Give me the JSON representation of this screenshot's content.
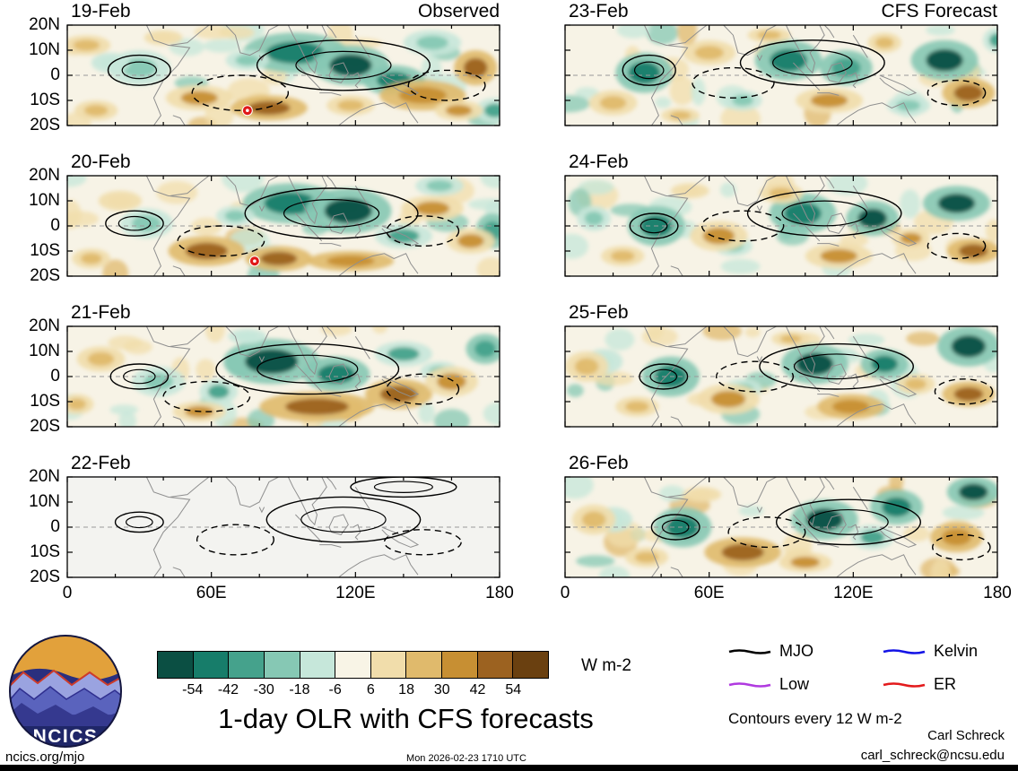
{
  "meta": {
    "title": "1-day OLR with CFS forecasts",
    "contour_note": "Contours every 12 W m-2",
    "credit_name": "Carl Schreck",
    "credit_email": "carl_schreck@ncsu.edu",
    "site": "ncics.org/mjo",
    "timestamp": "Mon 2026-02-23 1710 UTC",
    "logo_text": "NCICS"
  },
  "columns": [
    {
      "header": "Observed"
    },
    {
      "header": "CFS Forecast"
    }
  ],
  "axes": {
    "lon_range": [
      0,
      180
    ],
    "lat_range": [
      -20,
      20
    ],
    "x_values": [
      0,
      60,
      120,
      180
    ],
    "x_tick_labels": [
      "0",
      "60E",
      "120E",
      "180"
    ],
    "y_values": [
      20,
      10,
      0,
      -10,
      -20
    ],
    "y_tick_labels": [
      "20N",
      "10N",
      "0",
      "10S",
      "20S"
    ]
  },
  "colorbar": {
    "ticks": [
      -54,
      -42,
      -30,
      -18,
      -6,
      6,
      18,
      30,
      42,
      54
    ],
    "colors": [
      "#0b4f43",
      "#177d6a",
      "#45a28c",
      "#86c8b4",
      "#c6e7da",
      "#f8f4e6",
      "#f1ddab",
      "#e0ba6c",
      "#c78f33",
      "#9c6220",
      "#6a4010"
    ],
    "unit_label": "W m-2"
  },
  "legend": [
    {
      "label": "MJO",
      "color": "#000000"
    },
    {
      "label": "Kelvin",
      "color": "#1414e6"
    },
    {
      "label": "Low",
      "color": "#b03ae0"
    },
    {
      "label": "ER",
      "color": "#e31a1c"
    }
  ],
  "chart_data": {
    "type": "heatmap",
    "field": "OLR anomaly",
    "units": "W m-2",
    "blob_format": [
      "lon_deg_east",
      "lat_deg_north",
      "radius_lon_deg",
      "radius_lat_deg",
      "anomaly_wm2"
    ],
    "contour_format": [
      "lon_deg_east",
      "lat_deg_north",
      "radius_lon_deg",
      "radius_lat_deg",
      "dashed_flag"
    ],
    "panels": [
      {
        "date": "19-Feb",
        "column": "Observed",
        "bg": "#f7f3e6",
        "speckle": true,
        "blobs": [
          [
            30,
            3,
            13,
            7,
            -28
          ],
          [
            18,
            5,
            8,
            4,
            -18
          ],
          [
            95,
            9,
            22,
            8,
            -50
          ],
          [
            118,
            4,
            16,
            8,
            -58
          ],
          [
            136,
            -2,
            13,
            6,
            -45
          ],
          [
            152,
            13,
            12,
            5,
            -30
          ],
          [
            75,
            6,
            9,
            4,
            -22
          ],
          [
            178,
            -14,
            8,
            5,
            -35
          ],
          [
            55,
            -9,
            14,
            5,
            30
          ],
          [
            84,
            -13,
            16,
            5,
            45
          ],
          [
            118,
            -12,
            10,
            4,
            25
          ],
          [
            148,
            -8,
            18,
            6,
            40
          ],
          [
            170,
            3,
            9,
            7,
            48
          ],
          [
            163,
            -14,
            10,
            4,
            35
          ],
          [
            12,
            -14,
            9,
            4,
            26
          ],
          [
            8,
            12,
            10,
            4,
            18
          ],
          [
            40,
            15,
            8,
            3,
            15
          ]
        ],
        "contours": [
          [
            115,
            4,
            36,
            10,
            0
          ],
          [
            30,
            2,
            13,
            6,
            0
          ],
          [
            72,
            -7,
            20,
            7,
            1
          ],
          [
            158,
            -4,
            16,
            6,
            1
          ]
        ],
        "markers": [
          [
            75,
            -14
          ]
        ]
      },
      {
        "date": "20-Feb",
        "column": "Observed",
        "bg": "#f7f3e6",
        "speckle": true,
        "blobs": [
          [
            33,
            1,
            11,
            6,
            -26
          ],
          [
            93,
            9,
            20,
            8,
            -52
          ],
          [
            117,
            6,
            18,
            9,
            -60
          ],
          [
            140,
            -4,
            12,
            5,
            -38
          ],
          [
            70,
            4,
            8,
            4,
            -20
          ],
          [
            177,
            -2,
            7,
            7,
            -42
          ],
          [
            155,
            16,
            10,
            4,
            -25
          ],
          [
            58,
            -10,
            16,
            6,
            42
          ],
          [
            88,
            -13,
            14,
            5,
            50
          ],
          [
            118,
            -14,
            18,
            4,
            40
          ],
          [
            152,
            7,
            13,
            5,
            32
          ],
          [
            168,
            -6,
            10,
            5,
            36
          ],
          [
            10,
            -13,
            8,
            4,
            24
          ],
          [
            22,
            10,
            9,
            4,
            16
          ]
        ],
        "contours": [
          [
            110,
            5,
            36,
            10,
            0
          ],
          [
            28,
            1,
            12,
            5,
            0
          ],
          [
            64,
            -6,
            18,
            6,
            1
          ],
          [
            148,
            -2,
            15,
            6,
            1
          ]
        ],
        "markers": [
          [
            78,
            -14
          ]
        ]
      },
      {
        "date": "21-Feb",
        "column": "Observed",
        "bg": "#f7f3e6",
        "speckle": true,
        "blobs": [
          [
            85,
            6,
            20,
            9,
            -55
          ],
          [
            112,
            1,
            14,
            7,
            -45
          ],
          [
            38,
            -2,
            11,
            6,
            -30
          ],
          [
            140,
            9,
            12,
            5,
            -32
          ],
          [
            63,
            -6,
            8,
            5,
            -35
          ],
          [
            174,
            11,
            8,
            6,
            -42
          ],
          [
            155,
            2,
            8,
            4,
            -25
          ],
          [
            104,
            -12,
            24,
            6,
            52
          ],
          [
            138,
            -7,
            14,
            6,
            45
          ],
          [
            55,
            -14,
            11,
            4,
            30
          ],
          [
            160,
            -2,
            11,
            6,
            38
          ],
          [
            14,
            7,
            10,
            5,
            18
          ],
          [
            4,
            -11,
            7,
            4,
            24
          ],
          [
            75,
            16,
            8,
            3,
            -18
          ]
        ],
        "contours": [
          [
            100,
            3,
            38,
            10,
            0
          ],
          [
            30,
            0,
            12,
            5,
            0
          ],
          [
            58,
            -8,
            18,
            6,
            1
          ],
          [
            148,
            -5,
            15,
            6,
            1
          ]
        ],
        "markers": []
      },
      {
        "date": "22-Feb",
        "column": "Observed",
        "bg": "#f3f3f0",
        "speckle": false,
        "blobs": [],
        "contours": [
          [
            115,
            3,
            32,
            9,
            0
          ],
          [
            30,
            2,
            10,
            4,
            0
          ],
          [
            70,
            -5,
            16,
            6,
            1
          ],
          [
            148,
            -6,
            16,
            5,
            1
          ],
          [
            140,
            16,
            22,
            4,
            0
          ]
        ],
        "markers": []
      },
      {
        "date": "23-Feb",
        "column": "CFS Forecast",
        "bg": "#f7f3e6",
        "speckle": true,
        "blobs": [
          [
            33,
            1,
            12,
            8,
            -45
          ],
          [
            93,
            6,
            14,
            8,
            -50
          ],
          [
            117,
            3,
            11,
            7,
            -42
          ],
          [
            158,
            6,
            14,
            8,
            -55
          ],
          [
            74,
            -10,
            8,
            4,
            -24
          ],
          [
            143,
            -12,
            9,
            4,
            -28
          ],
          [
            180,
            14,
            6,
            5,
            -35
          ],
          [
            60,
            9,
            11,
            5,
            22
          ],
          [
            110,
            -10,
            14,
            5,
            34
          ],
          [
            168,
            -7,
            11,
            6,
            48
          ],
          [
            20,
            -11,
            10,
            5,
            24
          ],
          [
            85,
            16,
            9,
            3,
            18
          ],
          [
            133,
            13,
            7,
            4,
            28
          ],
          [
            48,
            -16,
            8,
            3,
            20
          ]
        ],
        "contours": [
          [
            103,
            5,
            30,
            9,
            0
          ],
          [
            35,
            2,
            11,
            6,
            0
          ],
          [
            70,
            -3,
            17,
            6,
            1
          ],
          [
            163,
            -7,
            12,
            5,
            1
          ]
        ],
        "markers": []
      },
      {
        "date": "24-Feb",
        "column": "CFS Forecast",
        "bg": "#f7f3e6",
        "speckle": true,
        "blobs": [
          [
            38,
            0,
            12,
            8,
            -45
          ],
          [
            99,
            5,
            14,
            8,
            -50
          ],
          [
            128,
            3,
            11,
            7,
            -55
          ],
          [
            163,
            9,
            14,
            7,
            -60
          ],
          [
            70,
            -8,
            8,
            4,
            -24
          ],
          [
            12,
            3,
            7,
            5,
            -20
          ],
          [
            64,
            -4,
            12,
            6,
            32
          ],
          [
            114,
            -12,
            14,
            5,
            36
          ],
          [
            170,
            -10,
            11,
            5,
            45
          ],
          [
            24,
            -12,
            9,
            4,
            24
          ],
          [
            90,
            13,
            9,
            4,
            18
          ],
          [
            144,
            -5,
            8,
            4,
            30
          ],
          [
            52,
            14,
            8,
            3,
            16
          ]
        ],
        "contours": [
          [
            108,
            5,
            32,
            9,
            0
          ],
          [
            37,
            0,
            10,
            5,
            0
          ],
          [
            74,
            0,
            17,
            6,
            1
          ],
          [
            163,
            -8,
            12,
            5,
            1
          ]
        ],
        "markers": []
      },
      {
        "date": "25-Feb",
        "column": "CFS Forecast",
        "bg": "#f7f3e6",
        "speckle": true,
        "blobs": [
          [
            44,
            0,
            12,
            8,
            -45
          ],
          [
            104,
            5,
            14,
            8,
            -55
          ],
          [
            133,
            5,
            10,
            6,
            -45
          ],
          [
            168,
            12,
            13,
            8,
            -60
          ],
          [
            74,
            -5,
            8,
            4,
            -30
          ],
          [
            16,
            6,
            8,
            5,
            -18
          ],
          [
            68,
            -9,
            13,
            6,
            34
          ],
          [
            119,
            -12,
            14,
            5,
            40
          ],
          [
            168,
            -7,
            11,
            5,
            45
          ],
          [
            30,
            -12,
            9,
            4,
            24
          ],
          [
            9,
            4,
            9,
            6,
            20
          ],
          [
            94,
            15,
            8,
            3,
            18
          ],
          [
            146,
            -3,
            8,
            4,
            28
          ]
        ],
        "contours": [
          [
            113,
            4,
            32,
            9,
            0
          ],
          [
            41,
            0,
            10,
            5,
            0
          ],
          [
            79,
            0,
            16,
            6,
            1
          ],
          [
            166,
            -6,
            12,
            5,
            1
          ]
        ],
        "markers": []
      },
      {
        "date": "26-Feb",
        "column": "CFS Forecast",
        "bg": "#f7f3e6",
        "speckle": true,
        "blobs": [
          [
            49,
            0,
            12,
            8,
            -45
          ],
          [
            108,
            3,
            14,
            8,
            -55
          ],
          [
            138,
            8,
            11,
            7,
            -50
          ],
          [
            170,
            14,
            11,
            6,
            -60
          ],
          [
            128,
            -4,
            9,
            5,
            -40
          ],
          [
            20,
            3,
            8,
            5,
            -18
          ],
          [
            74,
            -10,
            16,
            6,
            45
          ],
          [
            100,
            -14,
            11,
            4,
            36
          ],
          [
            163,
            -4,
            11,
            6,
            40
          ],
          [
            34,
            -12,
            9,
            4,
            24
          ],
          [
            12,
            3,
            9,
            6,
            18
          ],
          [
            57,
            13,
            8,
            3,
            16
          ]
        ],
        "contours": [
          [
            118,
            2,
            30,
            9,
            0
          ],
          [
            46,
            0,
            10,
            5,
            0
          ],
          [
            84,
            -2,
            16,
            6,
            1
          ],
          [
            165,
            -8,
            12,
            5,
            1
          ]
        ],
        "markers": []
      }
    ]
  }
}
